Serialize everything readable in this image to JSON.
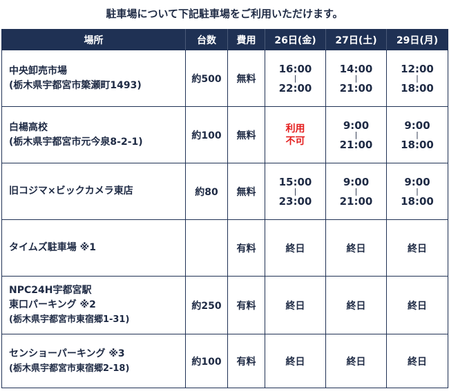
{
  "intro": "駐車場について下記駐車場をご利用いただけます。",
  "headers": {
    "place": "場所",
    "capacity": "台数",
    "fee": "費用",
    "d1": "26日(金)",
    "d2": "27日(土)",
    "d3": "29日(月)"
  },
  "separator": "|",
  "rows": [
    {
      "name": "中央卸売市場",
      "address": "(栃木県宇都宮市簗瀬町1493)",
      "capacity": "約500",
      "fee": "無料",
      "d1": {
        "start": "16:00",
        "end": "22:00"
      },
      "d2": {
        "start": "14:00",
        "end": "21:00"
      },
      "d3": {
        "start": "12:00",
        "end": "18:00"
      }
    },
    {
      "name": "白楊高校",
      "address": "(栃木県宇都宮市元今泉8-2-1)",
      "capacity": "約100",
      "fee": "無料",
      "d1_unavailable": [
        "利用",
        "不可"
      ],
      "d2": {
        "start": "9:00",
        "end": "21:00"
      },
      "d3": {
        "start": "9:00",
        "end": "18:00"
      }
    },
    {
      "name": "旧コジマ×ビックカメラ東店",
      "capacity": "約80",
      "fee": "無料",
      "d1": {
        "start": "15:00",
        "end": "23:00"
      },
      "d2": {
        "start": "9:00",
        "end": "21:00"
      },
      "d3": {
        "start": "9:00",
        "end": "18:00"
      }
    },
    {
      "name": "タイムズ駐車場 ※1",
      "capacity": "",
      "fee": "有料",
      "d1_text": "終日",
      "d2_text": "終日",
      "d3_text": "終日"
    },
    {
      "name_line1": "NPC24H宇都宮駅",
      "name_line2": "東口パーキング ※2",
      "address": "(栃木県宇都宮市東宿郷1-31)",
      "capacity": "約250",
      "fee": "有料",
      "d1_text": "終日",
      "d2_text": "終日",
      "d3_text": "終日"
    },
    {
      "name": "センショーパーキング ※3",
      "address": "(栃木県宇都宮市東宿郷2-18)",
      "capacity": "約100",
      "fee": "有料",
      "d1_text": "終日",
      "d2_text": "終日",
      "d3_text": "終日"
    }
  ]
}
